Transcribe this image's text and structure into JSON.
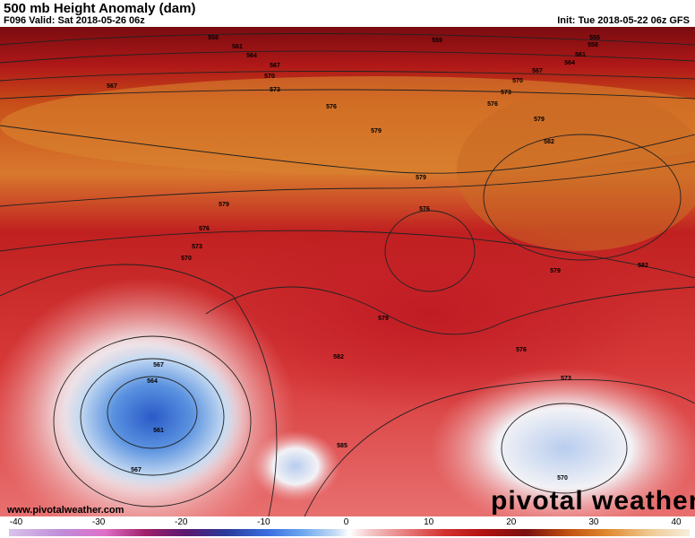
{
  "header": {
    "title": "500 mb Height Anomaly (dam)",
    "valid": "F096 Valid: Sat 2018-05-26 06z",
    "init": "Init: Tue 2018-05-22 06z GFS"
  },
  "map": {
    "contour_labels": [
      "558",
      "561",
      "564",
      "567",
      "570",
      "573",
      "567",
      "576",
      "579",
      "579",
      "576",
      "573",
      "570",
      "579",
      "576",
      "579",
      "582",
      "576",
      "573",
      "567",
      "564",
      "561",
      "567",
      "585",
      "570",
      "559",
      "555",
      "558",
      "561",
      "564",
      "567",
      "570",
      "573",
      "576",
      "579",
      "582",
      "582",
      "579"
    ]
  },
  "watermark": "www.pivotalweather.com",
  "logo": "pivotal weather",
  "colorbar": {
    "ticks": [
      -40,
      -30,
      -20,
      -10,
      0,
      10,
      20,
      30,
      40
    ]
  }
}
